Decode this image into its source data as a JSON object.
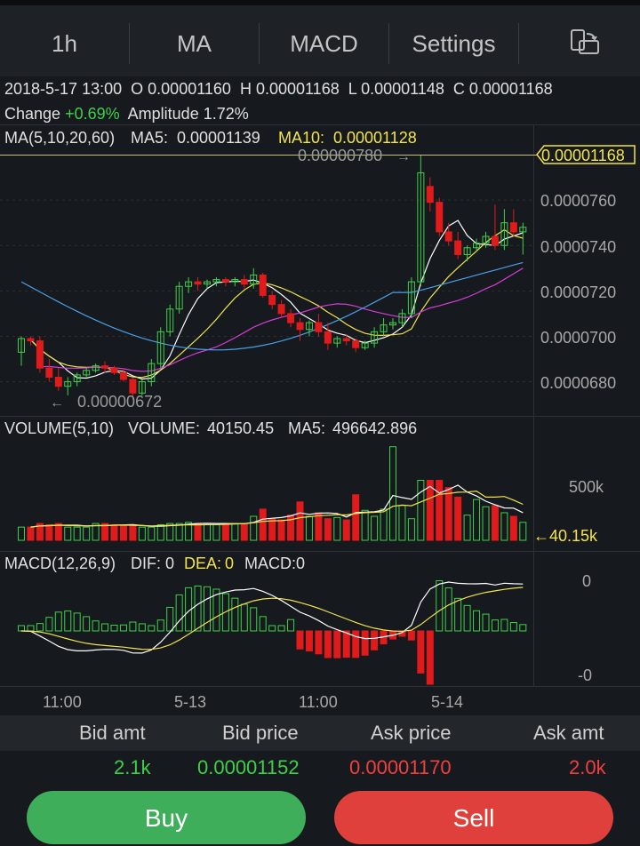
{
  "tabs": [
    {
      "label": "1h"
    },
    {
      "label": "MA"
    },
    {
      "label": "MACD"
    },
    {
      "label": "Settings"
    }
  ],
  "toolbar": {
    "rotate_icon": "screen-rotate-icon"
  },
  "ohlc": {
    "datetime": "2018-5-17 13:00",
    "open_label": "O",
    "open": "0.00001160",
    "high_label": "H",
    "high": "0.00001168",
    "low_label": "L",
    "low": "0.00001148",
    "close_label": "C",
    "close": "0.00001168",
    "change_label": "Change",
    "change": "+0.69%",
    "amplitude_label": "Amplitude",
    "amplitude": "1.72%"
  },
  "ma": {
    "title": "MA(5,10,20,60)",
    "ma5_label": "MA5:",
    "ma5": "0.00001139",
    "ma10_label": "MA10:",
    "ma10": "0.00001128"
  },
  "price_axis": {
    "current": "0.00001168",
    "ticks": [
      "0.0000760",
      "0.0000740",
      "0.0000720",
      "0.0000700",
      "0.0000680"
    ],
    "high_marker": "0.00000780",
    "low_marker": "0.00000672"
  },
  "volume": {
    "title": "VOLUME(5,10)",
    "volume_label": "VOLUME:",
    "volume": "40150.45",
    "ma5_label": "MA5:",
    "ma5": "496642.896",
    "axis_tick": "500k",
    "current": "40.15k"
  },
  "macd": {
    "title": "MACD(12,26,9)",
    "dif_label": "DIF:",
    "dif": "0",
    "dea_label": "DEA:",
    "dea": "0",
    "macd_label": "MACD:",
    "macd": "0",
    "axis_top": "0",
    "axis_bottom": "-0"
  },
  "time_axis": [
    "11:00",
    "5-13",
    "11:00",
    "5-14"
  ],
  "order_book": {
    "headers": [
      "Bid amt",
      "Bid price",
      "Ask price",
      "Ask amt"
    ],
    "bid_amt": "2.1k",
    "bid_price": "0.00001152",
    "ask_price": "0.00001170",
    "ask_amt": "2.0k"
  },
  "actions": {
    "buy_label": "Buy",
    "sell_label": "Sell"
  },
  "colors": {
    "up": "#3fd04a",
    "down": "#e01b1b",
    "ma5": "#ffffff",
    "ma10": "#f2e44d",
    "ma20": "#d33ed3",
    "ma60": "#4aa0e6",
    "background": "#16191d"
  },
  "chart_data": {
    "type": "candlestick",
    "candles": [
      {
        "o": 6.93e-06,
        "h": 7e-06,
        "l": 6.87e-06,
        "c": 6.99e-06
      },
      {
        "o": 6.99e-06,
        "h": 7e-06,
        "l": 6.96e-06,
        "c": 6.98e-06
      },
      {
        "o": 6.98e-06,
        "h": 7e-06,
        "l": 6.84e-06,
        "c": 6.86e-06
      },
      {
        "o": 6.86e-06,
        "h": 6.9e-06,
        "l": 6.8e-06,
        "c": 6.82e-06
      },
      {
        "o": 6.82e-06,
        "h": 6.86e-06,
        "l": 6.76e-06,
        "c": 6.78e-06
      },
      {
        "o": 6.78e-06,
        "h": 6.82e-06,
        "l": 6.74e-06,
        "c": 6.8e-06
      },
      {
        "o": 6.8e-06,
        "h": 6.84e-06,
        "l": 6.78e-06,
        "c": 6.83e-06
      },
      {
        "o": 6.83e-06,
        "h": 6.86e-06,
        "l": 6.82e-06,
        "c": 6.85e-06
      },
      {
        "o": 6.85e-06,
        "h": 6.88e-06,
        "l": 6.84e-06,
        "c": 6.87e-06
      },
      {
        "o": 6.87e-06,
        "h": 6.89e-06,
        "l": 6.84e-06,
        "c": 6.86e-06
      },
      {
        "o": 6.86e-06,
        "h": 6.87e-06,
        "l": 6.83e-06,
        "c": 6.84e-06
      },
      {
        "o": 6.84e-06,
        "h": 6.86e-06,
        "l": 6.8e-06,
        "c": 6.81e-06
      },
      {
        "o": 6.81e-06,
        "h": 6.82e-06,
        "l": 6.72e-06,
        "c": 6.75e-06
      },
      {
        "o": 6.75e-06,
        "h": 6.81e-06,
        "l": 6.74e-06,
        "c": 6.8e-06
      },
      {
        "o": 6.8e-06,
        "h": 6.9e-06,
        "l": 6.78e-06,
        "c": 6.88e-06
      },
      {
        "o": 6.88e-06,
        "h": 7.04e-06,
        "l": 6.86e-06,
        "c": 7.02e-06
      },
      {
        "o": 7.02e-06,
        "h": 7.14e-06,
        "l": 7e-06,
        "c": 7.12e-06
      },
      {
        "o": 7.12e-06,
        "h": 7.24e-06,
        "l": 7.1e-06,
        "c": 7.22e-06
      },
      {
        "o": 7.22e-06,
        "h": 7.26e-06,
        "l": 7.19e-06,
        "c": 7.24e-06
      },
      {
        "o": 7.24e-06,
        "h": 7.26e-06,
        "l": 7.2e-06,
        "c": 7.23e-06
      },
      {
        "o": 7.23e-06,
        "h": 7.25e-06,
        "l": 7.21e-06,
        "c": 7.24e-06
      },
      {
        "o": 7.24e-06,
        "h": 7.26e-06,
        "l": 7.22e-06,
        "c": 7.25e-06
      },
      {
        "o": 7.25e-06,
        "h": 7.26e-06,
        "l": 7.22e-06,
        "c": 7.24e-06
      },
      {
        "o": 7.24e-06,
        "h": 7.26e-06,
        "l": 7.22e-06,
        "c": 7.25e-06
      },
      {
        "o": 7.25e-06,
        "h": 7.27e-06,
        "l": 7.21e-06,
        "c": 7.23e-06
      },
      {
        "o": 7.23e-06,
        "h": 7.3e-06,
        "l": 7.21e-06,
        "c": 7.27e-06
      },
      {
        "o": 7.27e-06,
        "h": 7.28e-06,
        "l": 7.17e-06,
        "c": 7.18e-06
      },
      {
        "o": 7.18e-06,
        "h": 7.2e-06,
        "l": 7.12e-06,
        "c": 7.14e-06
      },
      {
        "o": 7.14e-06,
        "h": 7.16e-06,
        "l": 7.08e-06,
        "c": 7.1e-06
      },
      {
        "o": 7.1e-06,
        "h": 7.12e-06,
        "l": 7.04e-06,
        "c": 7.06e-06
      },
      {
        "o": 7.06e-06,
        "h": 7.08e-06,
        "l": 6.98e-06,
        "c": 7.03e-06
      },
      {
        "o": 7.03e-06,
        "h": 7.07e-06,
        "l": 7e-06,
        "c": 7.06e-06
      },
      {
        "o": 7.06e-06,
        "h": 7.1e-06,
        "l": 7e-06,
        "c": 7.02e-06
      },
      {
        "o": 7.02e-06,
        "h": 7.06e-06,
        "l": 6.94e-06,
        "c": 6.97e-06
      },
      {
        "o": 6.97e-06,
        "h": 7e-06,
        "l": 6.95e-06,
        "c": 6.99e-06
      },
      {
        "o": 6.99e-06,
        "h": 7.01e-06,
        "l": 6.96e-06,
        "c": 6.98e-06
      },
      {
        "o": 6.98e-06,
        "h": 6.99e-06,
        "l": 6.93e-06,
        "c": 6.95e-06
      },
      {
        "o": 6.95e-06,
        "h": 6.98e-06,
        "l": 6.94e-06,
        "c": 6.97e-06
      },
      {
        "o": 6.97e-06,
        "h": 7.04e-06,
        "l": 6.95e-06,
        "c": 7.02e-06
      },
      {
        "o": 7.02e-06,
        "h": 7.08e-06,
        "l": 7e-06,
        "c": 7.05e-06
      },
      {
        "o": 7.05e-06,
        "h": 7.08e-06,
        "l": 7.03e-06,
        "c": 7.06e-06
      },
      {
        "o": 7.06e-06,
        "h": 7.12e-06,
        "l": 7.04e-06,
        "c": 7.1e-06
      },
      {
        "o": 7.1e-06,
        "h": 7.26e-06,
        "l": 7.08e-06,
        "c": 7.24e-06
      },
      {
        "o": 7.24e-06,
        "h": 7.8e-06,
        "l": 7.22e-06,
        "c": 7.72e-06
      },
      {
        "o": 7.66e-06,
        "h": 7.7e-06,
        "l": 7.55e-06,
        "c": 7.59e-06
      },
      {
        "o": 7.59e-06,
        "h": 7.61e-06,
        "l": 7.44e-06,
        "c": 7.46e-06
      },
      {
        "o": 7.46e-06,
        "h": 7.5e-06,
        "l": 7.4e-06,
        "c": 7.42e-06
      },
      {
        "o": 7.42e-06,
        "h": 7.46e-06,
        "l": 7.34e-06,
        "c": 7.36e-06
      },
      {
        "o": 7.36e-06,
        "h": 7.4e-06,
        "l": 7.33e-06,
        "c": 7.39e-06
      },
      {
        "o": 7.39e-06,
        "h": 7.43e-06,
        "l": 7.37e-06,
        "c": 7.41e-06
      },
      {
        "o": 7.41e-06,
        "h": 7.46e-06,
        "l": 7.39e-06,
        "c": 7.44e-06
      },
      {
        "o": 7.44e-06,
        "h": 7.58e-06,
        "l": 7.38e-06,
        "c": 7.4e-06
      },
      {
        "o": 7.4e-06,
        "h": 7.56e-06,
        "l": 7.38e-06,
        "c": 7.5e-06
      },
      {
        "o": 7.5e-06,
        "h": 7.56e-06,
        "l": 7.44e-06,
        "c": 7.46e-06
      },
      {
        "o": 7.46e-06,
        "h": 7.5e-06,
        "l": 7.36e-06,
        "c": 7.48e-06
      }
    ],
    "volume_k": [
      110,
      110,
      140,
      130,
      140,
      110,
      110,
      110,
      140,
      140,
      130,
      120,
      120,
      110,
      110,
      130,
      140,
      140,
      150,
      140,
      140,
      130,
      140,
      140,
      140,
      200,
      260,
      180,
      170,
      210,
      320,
      200,
      230,
      180,
      190,
      170,
      380,
      250,
      200,
      260,
      780,
      290,
      180,
      500,
      500,
      500,
      440,
      360,
      210,
      340,
      280,
      290,
      230,
      200,
      150
    ],
    "macd_hist_down": [
      false,
      false,
      false,
      false,
      false,
      false,
      false,
      false,
      false,
      false,
      false,
      false,
      false,
      false,
      false,
      false,
      false,
      false,
      false,
      false,
      false,
      false,
      false,
      false,
      false,
      false,
      false,
      false,
      false,
      false,
      true,
      true,
      true,
      true,
      true,
      true,
      true,
      true,
      true,
      true,
      true,
      true,
      true,
      true,
      true,
      false,
      false,
      false,
      false,
      false,
      false,
      false,
      false,
      false,
      false
    ],
    "series": [
      {
        "name": "MA5",
        "value": "0.00001139"
      },
      {
        "name": "MA10",
        "value": "0.00001128"
      }
    ]
  }
}
